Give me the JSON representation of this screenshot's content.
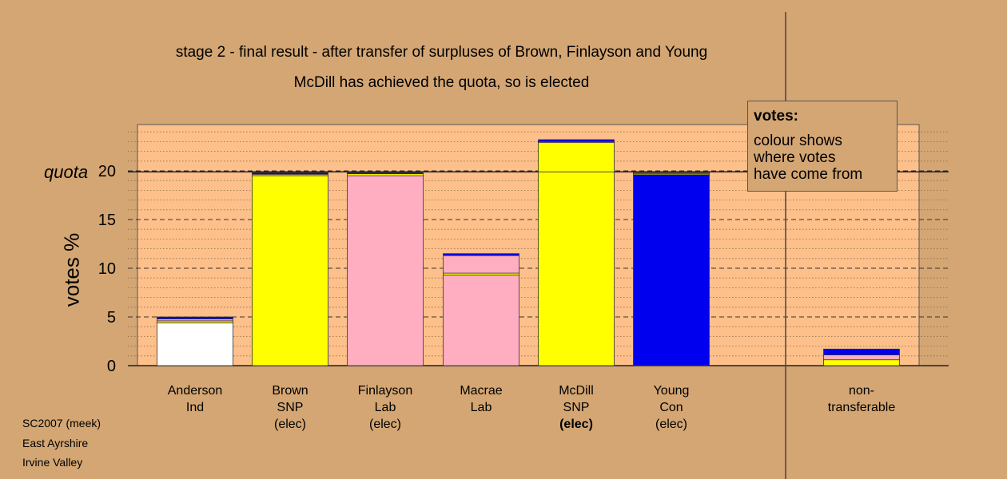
{
  "titles": {
    "line1": "stage 2 - final result - after transfer of surpluses of Brown, Finlayson and Young",
    "line2": "McDill has achieved the quota, so is elected"
  },
  "footer": {
    "line1": "SC2007 (meek)",
    "line2": "East Ayrshire",
    "line3": "Irvine Valley"
  },
  "legend": {
    "title": "votes:",
    "lines": [
      "colour shows",
      "where votes",
      "have come from"
    ]
  },
  "quota_label": "quota",
  "colors": {
    "background": "#d4a673",
    "plot_area": "#fdc08a",
    "independent": "#ffffff",
    "snp": "#ffff00",
    "labour": "#ffadc0",
    "conservative": "#0000ee"
  },
  "chart_data": {
    "type": "bar",
    "stacked": true,
    "ylabel": "votes %",
    "ylim": [
      0,
      24.5
    ],
    "yticks": [
      0,
      5,
      10,
      15,
      20
    ],
    "quota": 19.9,
    "grid": "dashed at major ticks, dotted minor",
    "legend_position": "top-right",
    "categories": [
      {
        "lines": [
          "Anderson",
          "Ind",
          ""
        ],
        "segments": [
          {
            "party": "independent",
            "value": 4.4
          },
          {
            "party": "snp",
            "value": 0.2
          },
          {
            "party": "labour",
            "value": 0.2
          },
          {
            "party": "conservative",
            "value": 0.2
          }
        ]
      },
      {
        "lines": [
          "Brown",
          "SNP",
          "(elec)"
        ],
        "segments": [
          {
            "party": "snp",
            "value": 19.5
          },
          {
            "party": "labour",
            "value": 0.15
          },
          {
            "party": "conservative",
            "value": 0.15
          }
        ]
      },
      {
        "lines": [
          "Finlayson",
          "Lab",
          "(elec)"
        ],
        "segments": [
          {
            "party": "labour",
            "value": 19.5
          },
          {
            "party": "snp",
            "value": 0.2
          },
          {
            "party": "conservative",
            "value": 0.1
          }
        ]
      },
      {
        "lines": [
          "Macrae",
          "Lab",
          ""
        ],
        "segments": [
          {
            "party": "labour",
            "value": 9.3
          },
          {
            "party": "snp",
            "value": 0.2
          },
          {
            "party": "labour",
            "value": 1.8
          },
          {
            "party": "conservative",
            "value": 0.2
          }
        ]
      },
      {
        "lines": [
          "McDill",
          "SNP",
          "(elec)"
        ],
        "segments": [
          {
            "party": "snp",
            "value": 19.9
          },
          {
            "party": "snp",
            "value": 3.0
          },
          {
            "party": "labour",
            "value": 0.1
          },
          {
            "party": "conservative",
            "value": 0.2
          }
        ]
      },
      {
        "lines": [
          "Young",
          "Con",
          "(elec)"
        ],
        "segments": [
          {
            "party": "conservative",
            "value": 19.6
          },
          {
            "party": "snp",
            "value": 0.1
          },
          {
            "party": "labour",
            "value": 0.1
          }
        ]
      }
    ],
    "nontransferable": {
      "lines": [
        "non-",
        "transferable",
        ""
      ],
      "segments": [
        {
          "party": "snp",
          "value": 0.6
        },
        {
          "party": "labour",
          "value": 0.5
        },
        {
          "party": "conservative",
          "value": 0.6
        }
      ]
    }
  }
}
